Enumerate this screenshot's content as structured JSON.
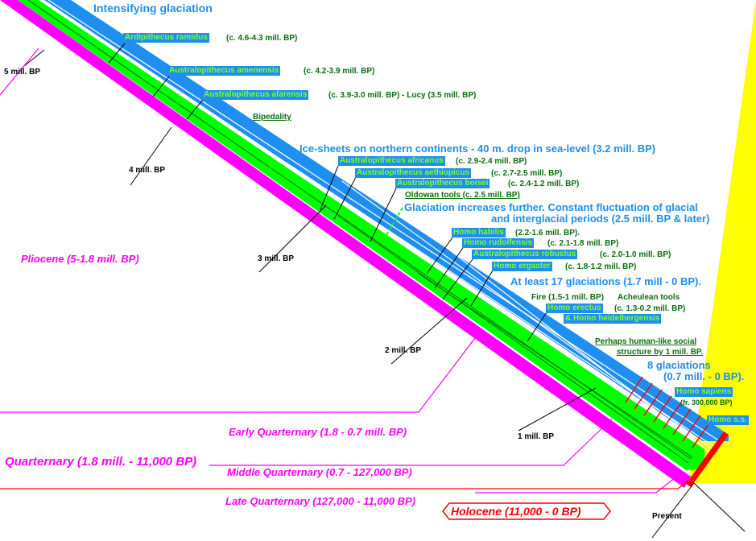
{
  "colors": {
    "ice": "#1e8ef0",
    "hominin_green": "#00ff00",
    "timeline": "#ff00ff",
    "caption_green": "#0b6e10",
    "holocene": "#ff0000",
    "light_cone": "#ffff00"
  },
  "header": {
    "title": "Intensifying glaciation"
  },
  "time_markers": {
    "m5": "5 mill. BP",
    "m4": "4 mill. BP",
    "m3": "3 mill. BP",
    "m2": "2 mill. BP",
    "m1": "1 mill. BP",
    "present": "Present"
  },
  "species": [
    {
      "name": "Ardipithecus ramidus",
      "date": "(c. 4.6-4.3 mill. BP)"
    },
    {
      "name": "Australopithecus amenensis",
      "date": "(c. 4.2-3.9 mill. BP)"
    },
    {
      "name": "Australopithecus afarensis",
      "date": "(c. 3.9-3.0 mill. BP) - Lucy (3.5 mill. BP)"
    },
    {
      "name": "Australopithecus africanus",
      "date": "(c. 2.9-2.4 mill. BP)"
    },
    {
      "name": "Australopithecus aethiopicus",
      "date": "(c. 2.7-2.5 mill. BP)"
    },
    {
      "name": "Australopithecus boisei",
      "date": "(c. 2.4-1.2 mill. BP)"
    },
    {
      "name": "Homo habilis",
      "date": "(2.2-1.6 mill. BP)."
    },
    {
      "name": "Homo rudolfensis",
      "date": "(c. 2.1-1.8 mill. BP)"
    },
    {
      "name": "Australopithecus robustus",
      "date": "(c. 2.0-1.0 mill. BP)"
    },
    {
      "name": "Homo ergaster",
      "date": "(c. 1.8-1.2 mill. BP)"
    },
    {
      "name": "Homo erectus",
      "date": "(c. 1.3-0.2 mill. BP)"
    },
    {
      "name": "& Homo heidelbergensis",
      "date": ""
    },
    {
      "name": "Homo sapiens",
      "date": "(fr. 300,000 BP)"
    },
    {
      "name": "Homo s.s.",
      "date": ""
    }
  ],
  "events": {
    "bipedality": "Bipedality",
    "oldowan": "Oldowan tools (c. 2.5 mill. BP)",
    "fire": "Fire (1.5-1 mill. BP)",
    "acheulean": "Acheulean tools",
    "social_1": "Perhaps human-like social",
    "social_2": "structure by 1 mill. BP."
  },
  "glaciation": {
    "ice_sheets": "Ice-sheets on northern continents - 40 m. drop in sea-level (3.2 mill. BP)",
    "increases_1": "Glaciation increases further.  Constant fluctuation of glacial",
    "increases_2": "and interglacial periods (2.5 mill. BP & later)",
    "seventeen": "At least 17 glaciations (1.7 mill - 0 BP).",
    "eight_1": "8 glaciations",
    "eight_2": "(0.7 mill. - 0 BP)."
  },
  "periods": {
    "pliocene": "Pliocene (5-1.8 mill. BP)",
    "quarternary": "Quarternary (1.8 mill. - 11,000 BP)",
    "early": "Early Quarternary  (1.8 - 0.7 mill. BP)",
    "middle": "Middle Quarternary (0.7 - 127,000 BP)",
    "late": "Late Quarternary  (127,000 - 11,000 BP)",
    "holocene": "Holocene (11,000 - 0 BP)"
  }
}
